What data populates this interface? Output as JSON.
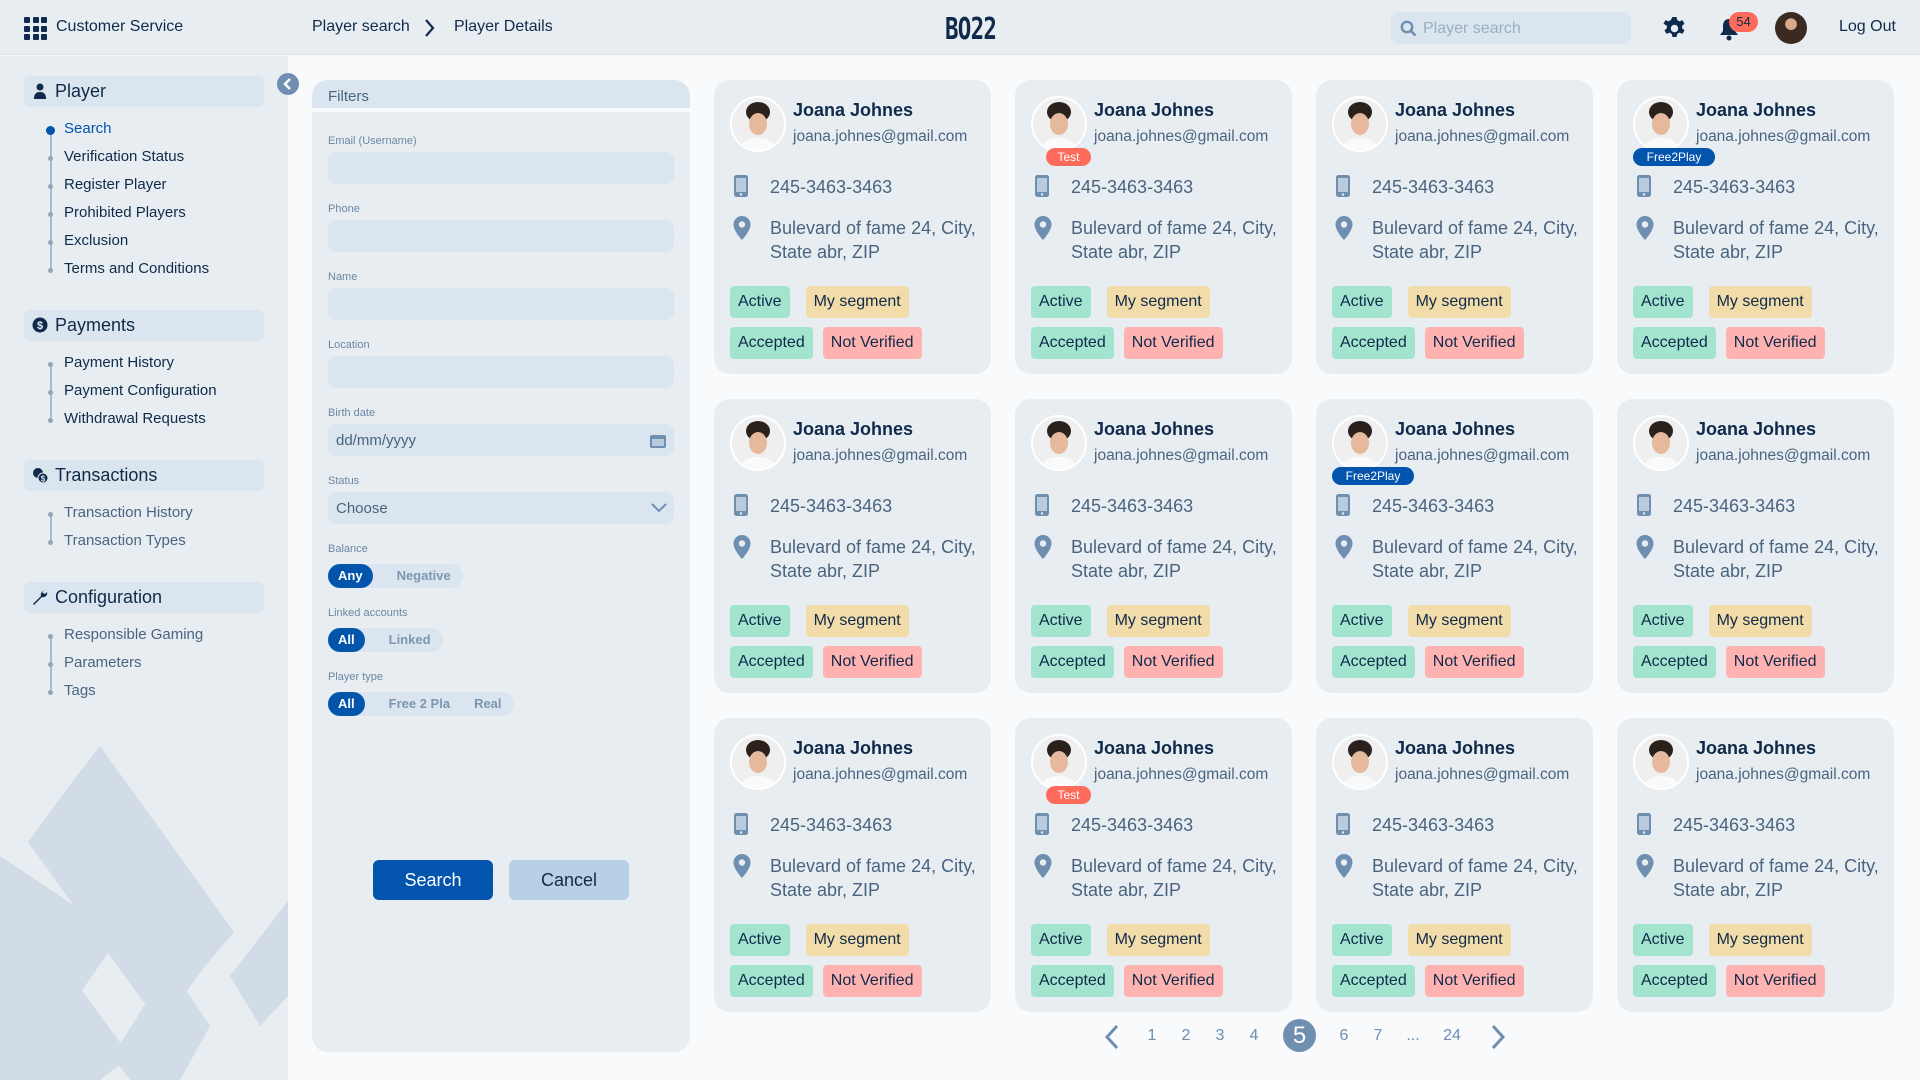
{
  "header": {
    "app_title": "Customer Service",
    "breadcrumb": [
      "Player search",
      "Player Details"
    ],
    "logo": "BO22",
    "search_placeholder": "Player search",
    "notification_count": "54",
    "logout": "Log Out"
  },
  "sidebar": {
    "groups": [
      {
        "label": "Player",
        "icon": "user-icon",
        "items": [
          "Search",
          "Verification Status",
          "Register Player",
          "Prohibited Players",
          "Exclusion",
          "Terms and Conditions"
        ],
        "active": "Search"
      },
      {
        "label": "Payments",
        "icon": "dollar-icon",
        "items": [
          "Payment History",
          "Payment Configuration",
          "Withdrawal Requests"
        ]
      },
      {
        "label": "Transactions",
        "icon": "transactions-icon",
        "items": [
          "Transaction History",
          "Transaction Types"
        ]
      },
      {
        "label": "Configuration",
        "icon": "wrench-icon",
        "items": [
          "Responsible Gaming",
          "Parameters",
          "Tags"
        ]
      }
    ]
  },
  "filters": {
    "title": "Filters",
    "email_label": "Email (Username)",
    "email_value": "",
    "phone_label": "Phone",
    "phone_value": "",
    "name_label": "Name",
    "name_value": "",
    "location_label": "Location",
    "location_value": "",
    "birth_label": "Birth date",
    "birth_placeholder": "dd/mm/yyyy",
    "status_label": "Status",
    "status_value": "Choose",
    "balance_label": "Balance",
    "balance_options": [
      "Any",
      "Negative"
    ],
    "balance_selected": "Any",
    "linked_label": "Linked accounts",
    "linked_options": [
      "All",
      "Linked"
    ],
    "linked_selected": "All",
    "type_label": "Player type",
    "type_options": [
      "All",
      "Free 2 Pla",
      "Real"
    ],
    "type_selected": "All",
    "search_button": "Search",
    "cancel_button": "Cancel"
  },
  "colors": {
    "primary": "#0354ad",
    "active_tag": "#a3e4cf",
    "segment_tag": "#f2dcaa",
    "not_verified_tag": "#ffb3b0",
    "test_badge": "#ff6b5b",
    "free2play_badge": "#0354ad",
    "current_page": "#6f8fb0"
  },
  "players": [
    {
      "name": "Joana Johnes",
      "email": "joana.johnes@gmail.com",
      "phone": "245-3463-3463",
      "address": "Bulevard of fame 24, City, State abr, ZIP",
      "tags": [
        "Active",
        "My segment",
        "Accepted",
        "Not Verified"
      ],
      "badge": ""
    },
    {
      "name": "Joana Johnes",
      "email": "joana.johnes@gmail.com",
      "phone": "245-3463-3463",
      "address": "Bulevard of fame 24, City, State abr, ZIP",
      "tags": [
        "Active",
        "My segment",
        "Accepted",
        "Not Verified"
      ],
      "badge": "Test"
    },
    {
      "name": "Joana Johnes",
      "email": "joana.johnes@gmail.com",
      "phone": "245-3463-3463",
      "address": "Bulevard of fame 24, City, State abr, ZIP",
      "tags": [
        "Active",
        "My segment",
        "Accepted",
        "Not Verified"
      ],
      "badge": ""
    },
    {
      "name": "Joana Johnes",
      "email": "joana.johnes@gmail.com",
      "phone": "245-3463-3463",
      "address": "Bulevard of fame 24, City, State abr, ZIP",
      "tags": [
        "Active",
        "My segment",
        "Accepted",
        "Not Verified"
      ],
      "badge": "Free2Play"
    },
    {
      "name": "Joana Johnes",
      "email": "joana.johnes@gmail.com",
      "phone": "245-3463-3463",
      "address": "Bulevard of fame 24, City, State abr, ZIP",
      "tags": [
        "Active",
        "My segment",
        "Accepted",
        "Not Verified"
      ],
      "badge": ""
    },
    {
      "name": "Joana Johnes",
      "email": "joana.johnes@gmail.com",
      "phone": "245-3463-3463",
      "address": "Bulevard of fame 24, City, State abr, ZIP",
      "tags": [
        "Active",
        "My segment",
        "Accepted",
        "Not Verified"
      ],
      "badge": ""
    },
    {
      "name": "Joana Johnes",
      "email": "joana.johnes@gmail.com",
      "phone": "245-3463-3463",
      "address": "Bulevard of fame 24, City, State abr, ZIP",
      "tags": [
        "Active",
        "My segment",
        "Accepted",
        "Not Verified"
      ],
      "badge": "Free2Play"
    },
    {
      "name": "Joana Johnes",
      "email": "joana.johnes@gmail.com",
      "phone": "245-3463-3463",
      "address": "Bulevard of fame 24, City, State abr, ZIP",
      "tags": [
        "Active",
        "My segment",
        "Accepted",
        "Not Verified"
      ],
      "badge": ""
    },
    {
      "name": "Joana Johnes",
      "email": "joana.johnes@gmail.com",
      "phone": "245-3463-3463",
      "address": "Bulevard of fame 24, City, State abr, ZIP",
      "tags": [
        "Active",
        "My segment",
        "Accepted",
        "Not Verified"
      ],
      "badge": ""
    },
    {
      "name": "Joana Johnes",
      "email": "joana.johnes@gmail.com",
      "phone": "245-3463-3463",
      "address": "Bulevard of fame 24, City, State abr, ZIP",
      "tags": [
        "Active",
        "My segment",
        "Accepted",
        "Not Verified"
      ],
      "badge": "Test"
    },
    {
      "name": "Joana Johnes",
      "email": "joana.johnes@gmail.com",
      "phone": "245-3463-3463",
      "address": "Bulevard of fame 24, City, State abr, ZIP",
      "tags": [
        "Active",
        "My segment",
        "Accepted",
        "Not Verified"
      ],
      "badge": ""
    },
    {
      "name": "Joana Johnes",
      "email": "joana.johnes@gmail.com",
      "phone": "245-3463-3463",
      "address": "Bulevard of fame 24, City, State abr, ZIP",
      "tags": [
        "Active",
        "My segment",
        "Accepted",
        "Not Verified"
      ],
      "badge": ""
    }
  ],
  "pagination": {
    "pages": [
      "1",
      "2",
      "3",
      "4",
      "5",
      "6",
      "7",
      "...",
      "24"
    ],
    "current": "5"
  }
}
